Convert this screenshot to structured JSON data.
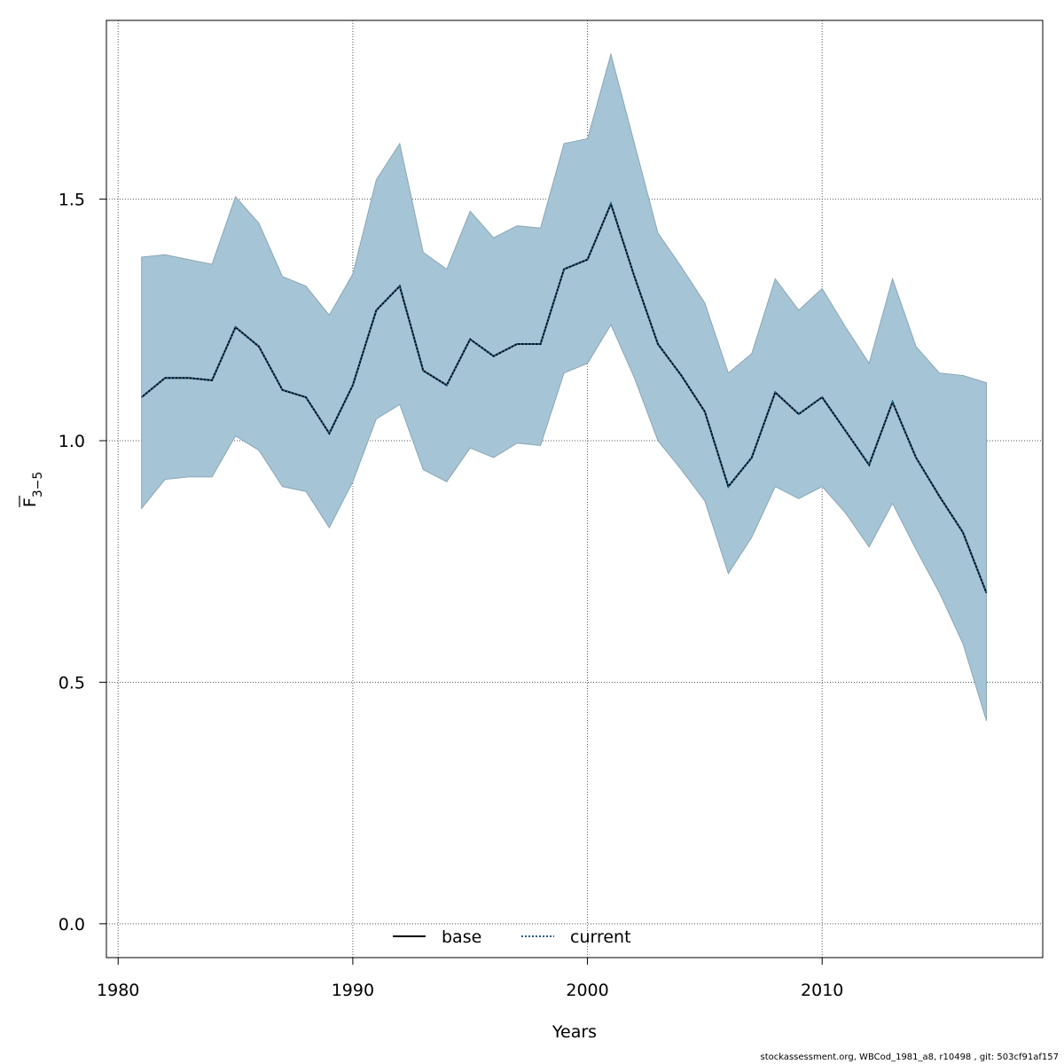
{
  "chart_data": {
    "type": "line",
    "xlabel": "Years",
    "ylabel_main": "F",
    "ylabel_sub": "3−5",
    "xlim": [
      1979.5,
      2019.4
    ],
    "ylim": [
      -0.07,
      1.87
    ],
    "xticks": [
      1980,
      1990,
      2000,
      2010
    ],
    "yticks": [
      0.0,
      0.5,
      1.0,
      1.5
    ],
    "ytick_labels": [
      "0.0",
      "0.5",
      "1.0",
      "1.5"
    ],
    "grid": true,
    "legend_position": "bottom-center",
    "x": [
      1981,
      1982,
      1983,
      1984,
      1985,
      1986,
      1987,
      1988,
      1989,
      1990,
      1991,
      1992,
      1993,
      1994,
      1995,
      1996,
      1997,
      1998,
      1999,
      2000,
      2001,
      2002,
      2003,
      2004,
      2005,
      2006,
      2007,
      2008,
      2009,
      2010,
      2011,
      2012,
      2013,
      2014,
      2015,
      2016,
      2017
    ],
    "band": {
      "lower": [
        0.86,
        0.92,
        0.925,
        0.925,
        1.01,
        0.98,
        0.905,
        0.895,
        0.82,
        0.915,
        1.045,
        1.075,
        0.94,
        0.915,
        0.985,
        0.965,
        0.995,
        0.99,
        1.14,
        1.16,
        1.24,
        1.13,
        1.0,
        0.94,
        0.875,
        0.725,
        0.8,
        0.905,
        0.88,
        0.905,
        0.85,
        0.78,
        0.87,
        0.775,
        0.685,
        0.58,
        0.42
      ],
      "upper": [
        1.38,
        1.385,
        1.375,
        1.365,
        1.505,
        1.45,
        1.34,
        1.32,
        1.26,
        1.345,
        1.54,
        1.615,
        1.39,
        1.355,
        1.475,
        1.42,
        1.445,
        1.44,
        1.615,
        1.625,
        1.8,
        1.615,
        1.43,
        1.36,
        1.285,
        1.14,
        1.18,
        1.335,
        1.27,
        1.315,
        1.235,
        1.16,
        1.335,
        1.195,
        1.14,
        1.135,
        1.12
      ]
    },
    "series": [
      {
        "name": "base",
        "style": "solid",
        "color": "#000000",
        "values": [
          1.09,
          1.13,
          1.13,
          1.125,
          1.235,
          1.195,
          1.105,
          1.09,
          1.015,
          1.115,
          1.27,
          1.32,
          1.145,
          1.115,
          1.21,
          1.175,
          1.2,
          1.2,
          1.355,
          1.375,
          1.49,
          1.34,
          1.2,
          1.135,
          1.06,
          0.905,
          0.965,
          1.1,
          1.055,
          1.09,
          1.02,
          0.95,
          1.08,
          0.965,
          0.885,
          0.81,
          0.685
        ]
      },
      {
        "name": "current",
        "style": "dotted",
        "color": "#1f5f8b",
        "values": [
          1.09,
          1.13,
          1.13,
          1.125,
          1.235,
          1.195,
          1.105,
          1.09,
          1.015,
          1.115,
          1.27,
          1.32,
          1.145,
          1.115,
          1.21,
          1.175,
          1.2,
          1.2,
          1.355,
          1.375,
          1.49,
          1.34,
          1.2,
          1.135,
          1.06,
          0.905,
          0.965,
          1.1,
          1.055,
          1.09,
          1.02,
          0.95,
          1.08,
          0.965,
          0.885,
          0.81,
          0.685
        ]
      }
    ],
    "colors": {
      "band_fill": "#a5c4d5",
      "band_stroke": "#8aa6b6",
      "grid": "#555555"
    }
  },
  "footer_text": "stockassessment.org, WBCod_1981_a8, r10498 , git: 503cf91af157"
}
